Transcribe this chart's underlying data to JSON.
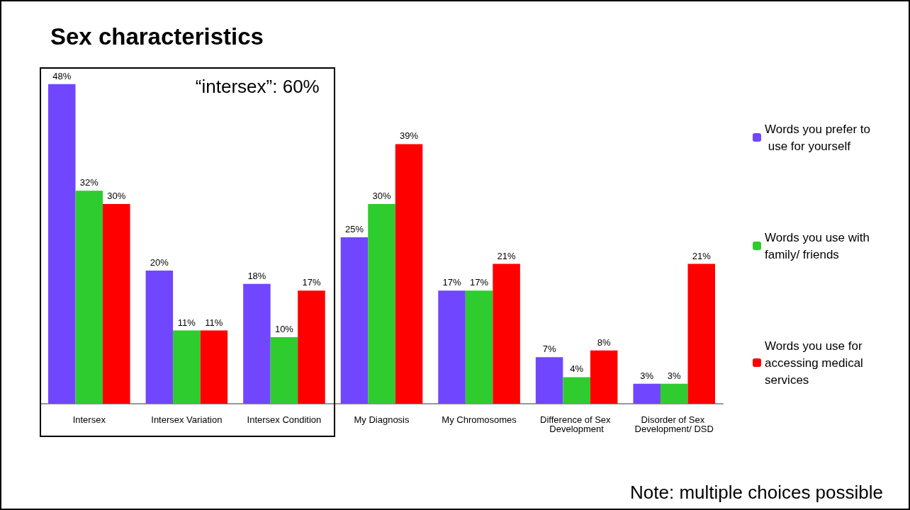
{
  "chart_data": {
    "type": "bar",
    "title": "Sex characteristics",
    "categories": [
      "Intersex",
      "Intersex Variation",
      "Intersex Condition",
      "My Diagnosis",
      "My Chromosomes",
      "Difference of Sex Development",
      "Disorder of Sex Development/ DSD"
    ],
    "series": [
      {
        "name": "Words you prefer to use for yourself",
        "color": "#7047ff",
        "values": [
          48,
          20,
          18,
          25,
          17,
          7,
          3
        ],
        "value_labels": [
          "48%",
          "20%",
          "18%",
          "25%",
          "17%",
          "7%",
          "3%"
        ]
      },
      {
        "name": "Words you use with family/ friends",
        "color": "#2ecc2e",
        "values": [
          32,
          11,
          10,
          30,
          17,
          4,
          3
        ],
        "value_labels": [
          "32%",
          "11%",
          "10%",
          "30%",
          "17%",
          "4%",
          "3%"
        ]
      },
      {
        "name": "Words you use for accessing medical services",
        "color": "#ff0000",
        "values": [
          30,
          11,
          17,
          39,
          21,
          8,
          21
        ],
        "value_labels": [
          "30%",
          "11%",
          "17%",
          "39%",
          "21%",
          "8%",
          "21%"
        ]
      }
    ],
    "legend": "right",
    "annotations": [
      "“intersex”: 60%",
      "Note: multiple choices possible"
    ]
  }
}
